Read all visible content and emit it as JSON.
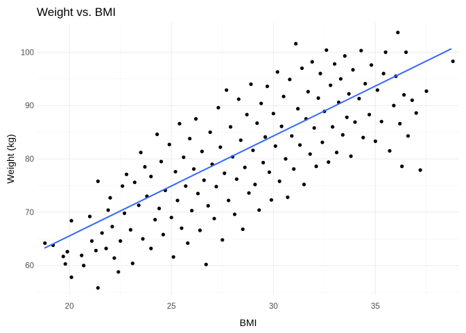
{
  "chart_data": {
    "type": "scatter",
    "title": "Weight vs. BMI",
    "xlabel": "BMI",
    "ylabel": "Weight (kg)",
    "xlim": [
      18.4,
      39.1
    ],
    "ylim": [
      54.5,
      105.5
    ],
    "x_ticks": [
      20,
      25,
      30,
      35
    ],
    "y_ticks": [
      60,
      70,
      80,
      90,
      100
    ],
    "x_tick_labels": [
      "20",
      "25",
      "30",
      "35"
    ],
    "y_tick_labels": [
      "60",
      "70",
      "80",
      "90",
      "100"
    ],
    "grid": true,
    "legend": "none",
    "colors": {
      "points": "#000000",
      "trend": "#3366FF",
      "grid": "#ebebeb"
    },
    "trend_line": {
      "type": "linear",
      "x": [
        18.8,
        38.7
      ],
      "y": [
        63.3,
        100.6
      ]
    },
    "series": [
      {
        "points": [
          [
            18.8,
            64.2
          ],
          [
            19.2,
            63.8
          ],
          [
            19.7,
            61.7
          ],
          [
            19.8,
            60.3
          ],
          [
            19.9,
            62.6
          ],
          [
            20.1,
            68.4
          ],
          [
            20.1,
            57.8
          ],
          [
            20.6,
            61.9
          ],
          [
            20.7,
            60.0
          ],
          [
            21.0,
            69.2
          ],
          [
            21.1,
            64.6
          ],
          [
            21.3,
            62.8
          ],
          [
            21.4,
            55.8
          ],
          [
            21.4,
            75.8
          ],
          [
            21.6,
            66.1
          ],
          [
            21.8,
            63.2
          ],
          [
            21.9,
            70.4
          ],
          [
            22.0,
            72.7
          ],
          [
            22.1,
            67.3
          ],
          [
            22.2,
            61.4
          ],
          [
            22.4,
            58.8
          ],
          [
            22.5,
            64.6
          ],
          [
            22.6,
            74.9
          ],
          [
            22.7,
            69.8
          ],
          [
            22.8,
            77.1
          ],
          [
            23.0,
            66.7
          ],
          [
            23.1,
            60.4
          ],
          [
            23.2,
            75.6
          ],
          [
            23.4,
            71.3
          ],
          [
            23.5,
            81.2
          ],
          [
            23.6,
            65.0
          ],
          [
            23.7,
            78.5
          ],
          [
            23.8,
            73.0
          ],
          [
            24.0,
            63.2
          ],
          [
            24.0,
            76.7
          ],
          [
            24.2,
            68.6
          ],
          [
            24.3,
            84.6
          ],
          [
            24.4,
            70.7
          ],
          [
            24.5,
            79.5
          ],
          [
            24.6,
            65.8
          ],
          [
            24.7,
            74.1
          ],
          [
            24.9,
            82.7
          ],
          [
            25.0,
            69.0
          ],
          [
            25.1,
            61.6
          ],
          [
            25.2,
            77.6
          ],
          [
            25.3,
            72.2
          ],
          [
            25.4,
            86.6
          ],
          [
            25.5,
            67.0
          ],
          [
            25.6,
            80.3
          ],
          [
            25.7,
            74.9
          ],
          [
            25.8,
            64.2
          ],
          [
            25.9,
            83.8
          ],
          [
            26.0,
            70.3
          ],
          [
            26.1,
            78.1
          ],
          [
            26.2,
            87.5
          ],
          [
            26.3,
            73.5
          ],
          [
            26.4,
            66.6
          ],
          [
            26.5,
            81.4
          ],
          [
            26.6,
            76.0
          ],
          [
            26.7,
            60.2
          ],
          [
            26.8,
            71.2
          ],
          [
            26.9,
            85.0
          ],
          [
            27.0,
            79.0
          ],
          [
            27.1,
            68.8
          ],
          [
            27.2,
            74.8
          ],
          [
            27.3,
            89.6
          ],
          [
            27.4,
            82.2
          ],
          [
            27.5,
            64.8
          ],
          [
            27.6,
            77.3
          ],
          [
            27.7,
            92.9
          ],
          [
            27.8,
            72.2
          ],
          [
            27.9,
            86.0
          ],
          [
            28.0,
            80.4
          ],
          [
            28.1,
            69.6
          ],
          [
            28.2,
            76.2
          ],
          [
            28.3,
            91.2
          ],
          [
            28.4,
            83.5
          ],
          [
            28.5,
            66.8
          ],
          [
            28.6,
            78.4
          ],
          [
            28.7,
            88.3
          ],
          [
            28.8,
            73.6
          ],
          [
            28.9,
            94.0
          ],
          [
            29.0,
            81.6
          ],
          [
            29.1,
            75.2
          ],
          [
            29.2,
            86.7
          ],
          [
            29.3,
            70.4
          ],
          [
            29.4,
            90.4
          ],
          [
            29.5,
            79.3
          ],
          [
            29.6,
            84.1
          ],
          [
            29.7,
            93.6
          ],
          [
            29.8,
            77.5
          ],
          [
            29.9,
            72.3
          ],
          [
            30.0,
            88.5
          ],
          [
            30.1,
            82.4
          ],
          [
            30.2,
            96.3
          ],
          [
            30.3,
            75.8
          ],
          [
            30.4,
            86.1
          ],
          [
            30.5,
            91.7
          ],
          [
            30.6,
            80.0
          ],
          [
            30.7,
            72.8
          ],
          [
            30.8,
            94.9
          ],
          [
            30.9,
            84.3
          ],
          [
            31.0,
            78.1
          ],
          [
            31.1,
            101.6
          ],
          [
            31.2,
            89.4
          ],
          [
            31.3,
            82.6
          ],
          [
            31.4,
            97.0
          ],
          [
            31.5,
            75.2
          ],
          [
            31.6,
            87.5
          ],
          [
            31.7,
            92.6
          ],
          [
            31.8,
            80.9
          ],
          [
            31.9,
            98.2
          ],
          [
            32.0,
            85.8
          ],
          [
            32.1,
            78.6
          ],
          [
            32.2,
            91.4
          ],
          [
            32.3,
            96.0
          ],
          [
            32.4,
            83.1
          ],
          [
            32.5,
            88.9
          ],
          [
            32.6,
            100.4
          ],
          [
            32.7,
            79.4
          ],
          [
            32.8,
            93.8
          ],
          [
            32.9,
            86.0
          ],
          [
            33.0,
            97.8
          ],
          [
            33.1,
            81.2
          ],
          [
            33.2,
            90.6
          ],
          [
            33.3,
            95.0
          ],
          [
            33.4,
            84.5
          ],
          [
            33.5,
            99.3
          ],
          [
            33.6,
            87.8
          ],
          [
            33.7,
            92.2
          ],
          [
            33.8,
            80.5
          ],
          [
            33.9,
            96.7
          ],
          [
            34.0,
            86.9
          ],
          [
            34.2,
            91.3
          ],
          [
            34.3,
            100.3
          ],
          [
            34.4,
            84.0
          ],
          [
            34.5,
            94.1
          ],
          [
            34.7,
            88.3
          ],
          [
            34.8,
            97.6
          ],
          [
            35.0,
            83.3
          ],
          [
            35.1,
            92.9
          ],
          [
            35.3,
            87.0
          ],
          [
            35.4,
            96.0
          ],
          [
            35.5,
            100.0
          ],
          [
            35.7,
            81.5
          ],
          [
            35.9,
            90.0
          ],
          [
            36.0,
            95.5
          ],
          [
            36.1,
            103.7
          ],
          [
            36.2,
            86.6
          ],
          [
            36.3,
            78.6
          ],
          [
            36.4,
            92.0
          ],
          [
            36.5,
            100.0
          ],
          [
            36.6,
            84.3
          ],
          [
            36.8,
            91.0
          ],
          [
            37.0,
            88.6
          ],
          [
            37.2,
            77.9
          ],
          [
            37.5,
            92.7
          ],
          [
            38.8,
            98.3
          ]
        ]
      }
    ]
  }
}
